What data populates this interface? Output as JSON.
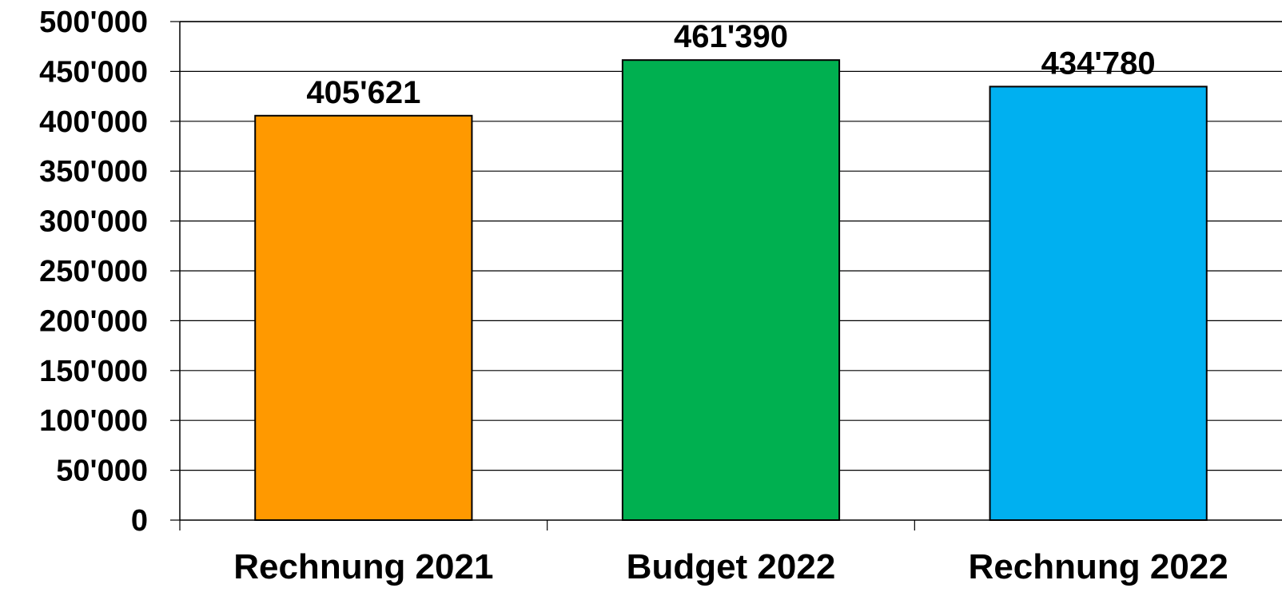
{
  "chart_data": {
    "type": "bar",
    "categories": [
      "Rechnung 2021",
      "Budget 2022",
      "Rechnung 2022"
    ],
    "values": [
      405621,
      461390,
      434780
    ],
    "value_labels": [
      "405'621",
      "461'390",
      "434'780"
    ],
    "colors": [
      "#FF9900",
      "#00B050",
      "#00B0F0"
    ],
    "ylim": [
      0,
      500000
    ],
    "yticks": [
      0,
      50000,
      100000,
      150000,
      200000,
      250000,
      300000,
      350000,
      400000,
      450000,
      500000
    ],
    "ytick_labels": [
      "0",
      "50'000",
      "100'000",
      "150'000",
      "200'000",
      "250'000",
      "300'000",
      "350'000",
      "400'000",
      "450'000",
      "500'000"
    ],
    "grid": true,
    "legend": "none",
    "title": "",
    "xlabel": "",
    "ylabel": ""
  }
}
